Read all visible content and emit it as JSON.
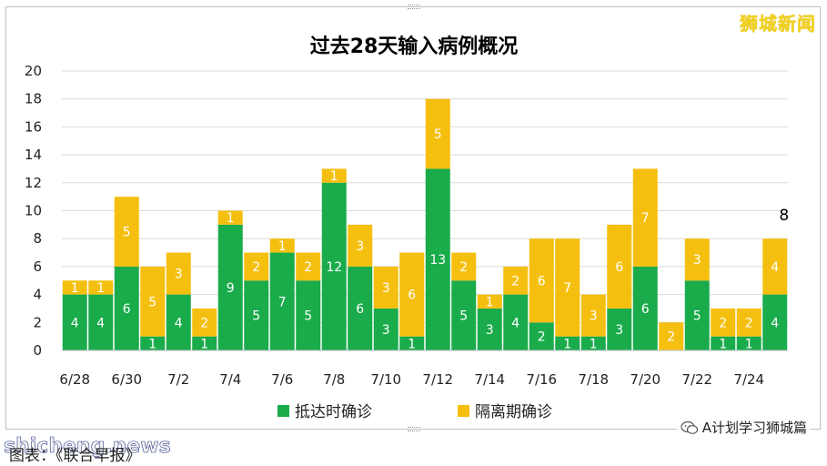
{
  "watermark_top": "狮城新闻",
  "watermark_bottom_left": "shicheng.news",
  "watermark_bottom_right": "A计划学习狮城篇",
  "caption": "图表：《联合早报》",
  "colors": {
    "imported": "#1aab4b",
    "quarantine": "#f5bf0f",
    "grid": "#d9d9d9"
  },
  "chart_data": {
    "type": "bar",
    "stacked": true,
    "title": "过去28天输入病例概况",
    "categories": [
      "6/28",
      "6/29",
      "6/30",
      "7/1",
      "7/2",
      "7/3",
      "7/4",
      "7/5",
      "7/6",
      "7/7",
      "7/8",
      "7/9",
      "7/10",
      "7/11",
      "7/12",
      "7/13",
      "7/14",
      "7/15",
      "7/16",
      "7/17",
      "7/18",
      "7/19",
      "7/20",
      "7/21",
      "7/22",
      "7/23",
      "7/24",
      "7/25"
    ],
    "x_tick_labels": [
      "6/28",
      "",
      "6/30",
      "",
      "7/2",
      "",
      "7/4",
      "",
      "7/6",
      "",
      "7/8",
      "",
      "7/10",
      "",
      "7/12",
      "",
      "7/14",
      "",
      "7/16",
      "",
      "7/18",
      "",
      "7/20",
      "",
      "7/22",
      "",
      "7/24",
      ""
    ],
    "series": [
      {
        "name": "抵达时确诊",
        "values": [
          4,
          4,
          6,
          1,
          4,
          1,
          9,
          5,
          7,
          5,
          12,
          6,
          3,
          1,
          13,
          5,
          3,
          4,
          2,
          1,
          1,
          3,
          6,
          0,
          5,
          1,
          1,
          4
        ]
      },
      {
        "name": "隔离期确诊",
        "values": [
          1,
          1,
          5,
          5,
          3,
          2,
          1,
          2,
          1,
          2,
          1,
          3,
          3,
          6,
          5,
          2,
          1,
          2,
          6,
          7,
          3,
          6,
          7,
          2,
          3,
          2,
          2,
          4
        ]
      }
    ],
    "ylim": [
      0,
      20
    ],
    "y_ticks": [
      0,
      2,
      4,
      6,
      8,
      10,
      12,
      14,
      16,
      18,
      20
    ],
    "grid": true,
    "legend_position": "bottom",
    "annotations": [
      {
        "category": "7/25",
        "text": "8"
      }
    ]
  }
}
